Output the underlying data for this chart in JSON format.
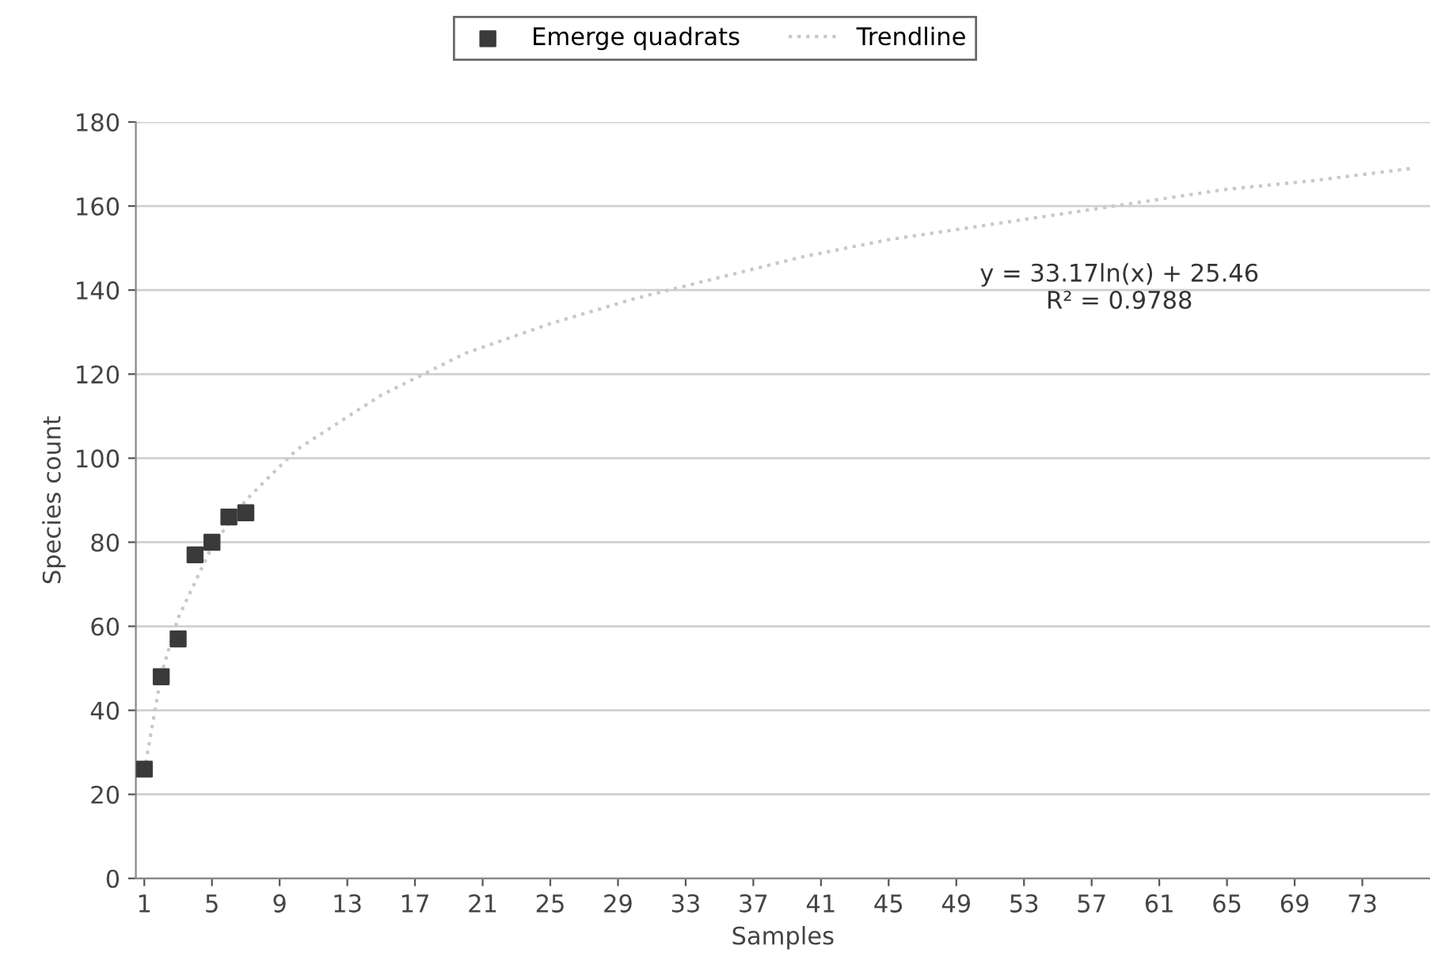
{
  "chart_data": {
    "type": "scatter",
    "xlabel": "Samples",
    "ylabel": "Species count",
    "xlim": [
      0.5,
      77
    ],
    "xticks": [
      1,
      5,
      9,
      13,
      17,
      21,
      25,
      29,
      33,
      37,
      41,
      45,
      49,
      53,
      57,
      61,
      65,
      69,
      73
    ],
    "ylim": [
      0,
      180
    ],
    "yticks": [
      0,
      20,
      40,
      60,
      80,
      100,
      120,
      140,
      160,
      180
    ],
    "grid": "y",
    "legend": "top",
    "series": [
      {
        "name": "Emerge quadrats",
        "marker": "square",
        "color": "#3a3a3a",
        "x": [
          1,
          2,
          3,
          4,
          5,
          6,
          7
        ],
        "values": [
          26,
          48,
          57,
          77,
          80,
          86,
          87
        ]
      },
      {
        "name": "Trendline",
        "type": "line",
        "line_style": "dotted",
        "color": "#c8c8c8",
        "x": [
          1,
          2,
          3,
          5,
          7,
          10,
          15,
          20,
          25,
          30,
          35,
          40,
          45,
          50,
          55,
          60,
          65,
          70,
          76
        ],
        "values": [
          25.5,
          48.5,
          62,
          79,
          90,
          102,
          115,
          125,
          132,
          138,
          143,
          148,
          152,
          155,
          158,
          161,
          164,
          166,
          169
        ]
      }
    ],
    "annotations": [
      "y = 33.17ln(x) + 25.46\nR² = 0.9788"
    ]
  }
}
